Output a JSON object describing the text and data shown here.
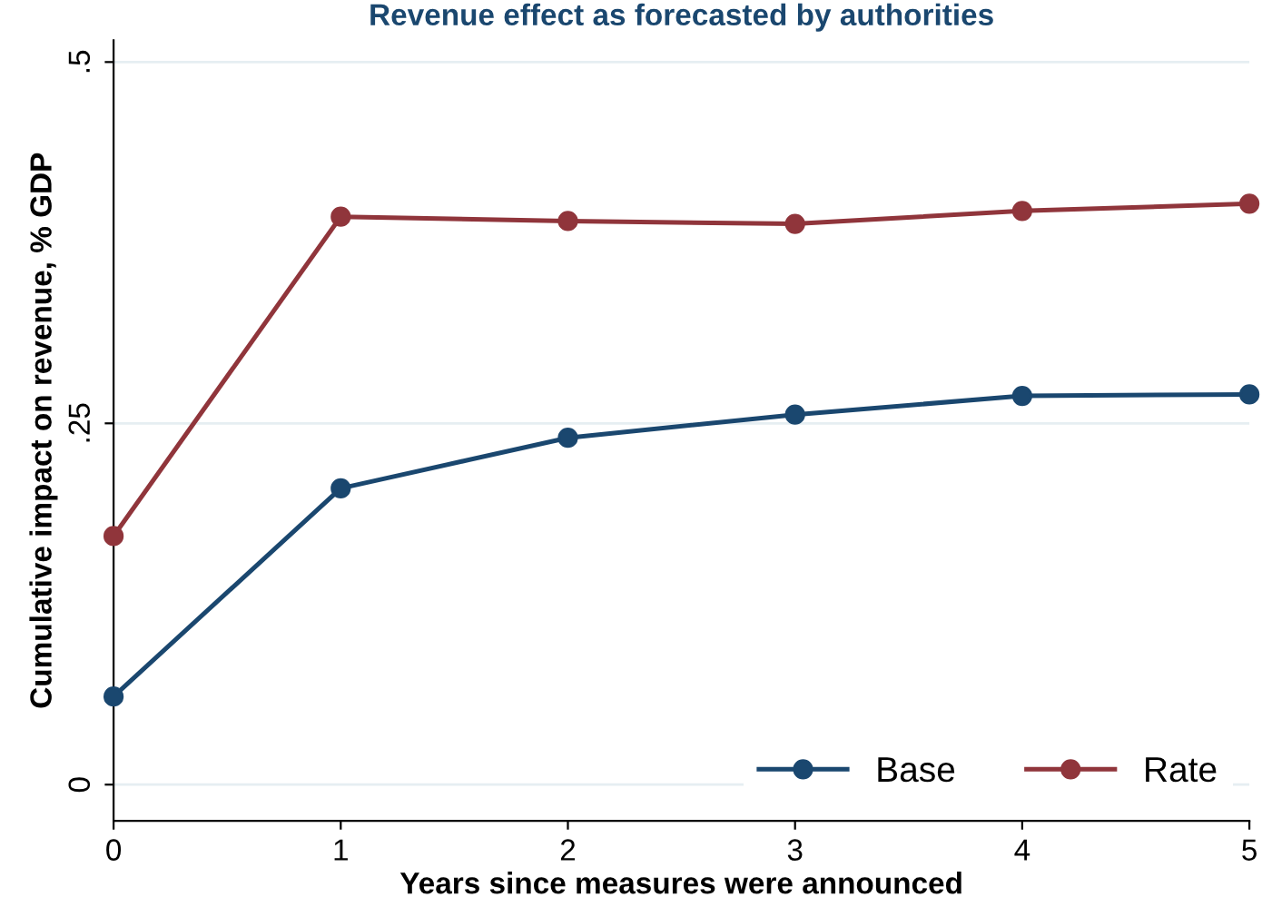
{
  "chart_data": {
    "type": "line",
    "title": "Revenue effect as forecasted by authorities",
    "xlabel": "Years since measures were announced",
    "ylabel": "Cumulative impact on revenue, % GDP",
    "x": [
      0,
      1,
      2,
      3,
      4,
      5
    ],
    "series": [
      {
        "name": "Base",
        "color": "#1a476f",
        "values": [
          0.061,
          0.205,
          0.24,
          0.256,
          0.269,
          0.27
        ]
      },
      {
        "name": "Rate",
        "color": "#90353b",
        "values": [
          0.172,
          0.393,
          0.39,
          0.388,
          0.397,
          0.402
        ]
      }
    ],
    "xlim": [
      0,
      5
    ],
    "xticks": [
      0,
      1,
      2,
      3,
      4,
      5
    ],
    "ylim": [
      -0.025,
      0.515
    ],
    "yticks": [
      {
        "value": 0,
        "label": "0"
      },
      {
        "value": 0.25,
        "label": ".25"
      },
      {
        "value": 0.5,
        "label": ".5"
      }
    ],
    "grid": "y",
    "legend": "bottom right",
    "marker": "circle",
    "line_style": "solid"
  }
}
